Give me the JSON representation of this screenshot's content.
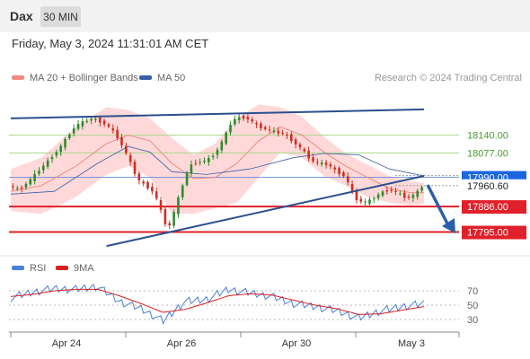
{
  "header": {
    "instrument": "Dax",
    "interval_label": "30 MIN"
  },
  "timestamp": "Friday, May 3, 2024 11:31:01 AM CET",
  "legend": {
    "bollinger_label": "MA 20 + Bollinger Bands",
    "ma50_label": "MA 50",
    "copyright": "Research © 2024 Trading Central",
    "rsi_label": "RSI",
    "rsi_ma_label": "9MA"
  },
  "colors": {
    "up_candle": "#2e8b2e",
    "down_candle": "#d62a1e",
    "bollinger_band": "#ffcccc",
    "ma20": "#f08a80",
    "ma50": "#3a5fa8",
    "trendline": "#2b4f8f",
    "support": "#e0202a",
    "resistance": "#a8d88a",
    "current_price_tag": "#1a66e0",
    "rsi": "#4a7fd6",
    "rsi_ma": "#d62020"
  },
  "chart_data": [
    {
      "type": "candlestick",
      "ylim": [
        17720,
        18270
      ],
      "x_ticks": [
        "Apr 24",
        "Apr 26",
        "Apr 30",
        "May 3"
      ],
      "levels": [
        {
          "name": "resistance",
          "value": 18140.0,
          "label": "18140.00"
        },
        {
          "name": "resistance",
          "value": 18077.0,
          "label": "18077.00"
        },
        {
          "name": "current-price",
          "value": 17990.0,
          "label": "17990.00"
        },
        {
          "name": "last-close",
          "value": 17960.6,
          "label": "17960.60"
        },
        {
          "name": "support",
          "value": 17886.0,
          "label": "17886.00"
        },
        {
          "name": "support",
          "value": 17795.0,
          "label": "17795.00"
        }
      ],
      "close_path": [
        [
          0,
          17960
        ],
        [
          4,
          17945
        ],
        [
          10,
          17990
        ],
        [
          16,
          18040
        ],
        [
          22,
          18090
        ],
        [
          26,
          18135
        ],
        [
          30,
          18175
        ],
        [
          34,
          18190
        ],
        [
          38,
          18200
        ],
        [
          42,
          18185
        ],
        [
          46,
          18165
        ],
        [
          50,
          18120
        ],
        [
          54,
          18060
        ],
        [
          58,
          17985
        ],
        [
          62,
          17960
        ],
        [
          66,
          17935
        ],
        [
          70,
          17850
        ],
        [
          72,
          17800
        ],
        [
          74,
          17840
        ],
        [
          78,
          17940
        ],
        [
          82,
          18030
        ],
        [
          86,
          18045
        ],
        [
          90,
          18050
        ],
        [
          94,
          18075
        ],
        [
          98,
          18130
        ],
        [
          102,
          18195
        ],
        [
          106,
          18205
        ],
        [
          110,
          18195
        ],
        [
          114,
          18170
        ],
        [
          118,
          18160
        ],
        [
          122,
          18150
        ],
        [
          126,
          18145
        ],
        [
          130,
          18115
        ],
        [
          134,
          18090
        ],
        [
          138,
          18050
        ],
        [
          142,
          18040
        ],
        [
          146,
          18035
        ],
        [
          150,
          18010
        ],
        [
          154,
          17990
        ],
        [
          158,
          17915
        ],
        [
          162,
          17900
        ],
        [
          166,
          17910
        ],
        [
          170,
          17935
        ],
        [
          174,
          17945
        ],
        [
          178,
          17935
        ],
        [
          182,
          17915
        ],
        [
          186,
          17930
        ],
        [
          190,
          17965
        ]
      ],
      "ma20_path": [
        [
          0,
          17940
        ],
        [
          14,
          17960
        ],
        [
          30,
          18030
        ],
        [
          44,
          18110
        ],
        [
          54,
          18140
        ],
        [
          64,
          18120
        ],
        [
          74,
          18040
        ],
        [
          84,
          17985
        ],
        [
          94,
          17990
        ],
        [
          104,
          18040
        ],
        [
          114,
          18120
        ],
        [
          124,
          18170
        ],
        [
          134,
          18140
        ],
        [
          144,
          18080
        ],
        [
          154,
          18030
        ],
        [
          164,
          17990
        ],
        [
          174,
          17950
        ],
        [
          184,
          17935
        ],
        [
          190,
          17935
        ]
      ],
      "bollinger_upper": [
        [
          0,
          18020
        ],
        [
          14,
          18060
        ],
        [
          30,
          18170
        ],
        [
          44,
          18240
        ],
        [
          54,
          18230
        ],
        [
          64,
          18200
        ],
        [
          74,
          18130
        ],
        [
          84,
          18070
        ],
        [
          94,
          18110
        ],
        [
          104,
          18200
        ],
        [
          114,
          18250
        ],
        [
          124,
          18240
        ],
        [
          134,
          18205
        ],
        [
          144,
          18135
        ],
        [
          154,
          18075
        ],
        [
          164,
          18035
        ],
        [
          174,
          17995
        ],
        [
          184,
          17975
        ],
        [
          190,
          17970
        ]
      ],
      "bollinger_lower": [
        [
          0,
          17870
        ],
        [
          14,
          17860
        ],
        [
          30,
          17920
        ],
        [
          44,
          18000
        ],
        [
          54,
          18030
        ],
        [
          64,
          17990
        ],
        [
          74,
          17860
        ],
        [
          84,
          17860
        ],
        [
          94,
          17880
        ],
        [
          104,
          17900
        ],
        [
          114,
          17990
        ],
        [
          124,
          18080
        ],
        [
          134,
          18060
        ],
        [
          144,
          17995
        ],
        [
          154,
          17960
        ],
        [
          164,
          17920
        ],
        [
          174,
          17900
        ],
        [
          184,
          17890
        ],
        [
          190,
          17895
        ]
      ],
      "ma50_path": [
        [
          0,
          17930
        ],
        [
          20,
          17940
        ],
        [
          40,
          18040
        ],
        [
          54,
          18100
        ],
        [
          64,
          18080
        ],
        [
          74,
          18010
        ],
        [
          90,
          18000
        ],
        [
          110,
          18020
        ],
        [
          130,
          18060
        ],
        [
          144,
          18075
        ],
        [
          160,
          18070
        ],
        [
          174,
          18020
        ],
        [
          190,
          17995
        ]
      ],
      "trendlines": [
        {
          "name": "upper-channel",
          "from": [
            0,
            18200
          ],
          "to": [
            190,
            18232
          ]
        },
        {
          "name": "lower-channel",
          "from": [
            44,
            17745
          ],
          "to": [
            190,
            17995
          ]
        }
      ]
    },
    {
      "type": "line",
      "ylim": [
        15,
        85
      ],
      "y_ticks": [
        30,
        50,
        70
      ],
      "series": [
        {
          "name": "RSI",
          "values": [
            [
              0,
              60
            ],
            [
              10,
              68
            ],
            [
              20,
              73
            ],
            [
              30,
              72
            ],
            [
              40,
              76
            ],
            [
              50,
              55
            ],
            [
              60,
              45
            ],
            [
              70,
              28
            ],
            [
              80,
              55
            ],
            [
              90,
              58
            ],
            [
              100,
              72
            ],
            [
              110,
              67
            ],
            [
              120,
              62
            ],
            [
              130,
              52
            ],
            [
              140,
              48
            ],
            [
              150,
              42
            ],
            [
              160,
              32
            ],
            [
              170,
              42
            ],
            [
              180,
              48
            ],
            [
              190,
              52
            ]
          ]
        },
        {
          "name": "9MA",
          "values": [
            [
              0,
              62
            ],
            [
              10,
              65
            ],
            [
              20,
              70
            ],
            [
              30,
              72
            ],
            [
              40,
              72
            ],
            [
              50,
              63
            ],
            [
              60,
              52
            ],
            [
              70,
              40
            ],
            [
              80,
              44
            ],
            [
              90,
              53
            ],
            [
              100,
              63
            ],
            [
              110,
              66
            ],
            [
              120,
              64
            ],
            [
              130,
              57
            ],
            [
              140,
              50
            ],
            [
              150,
              45
            ],
            [
              160,
              37
            ],
            [
              170,
              38
            ],
            [
              180,
              43
            ],
            [
              190,
              48
            ]
          ]
        }
      ]
    }
  ]
}
